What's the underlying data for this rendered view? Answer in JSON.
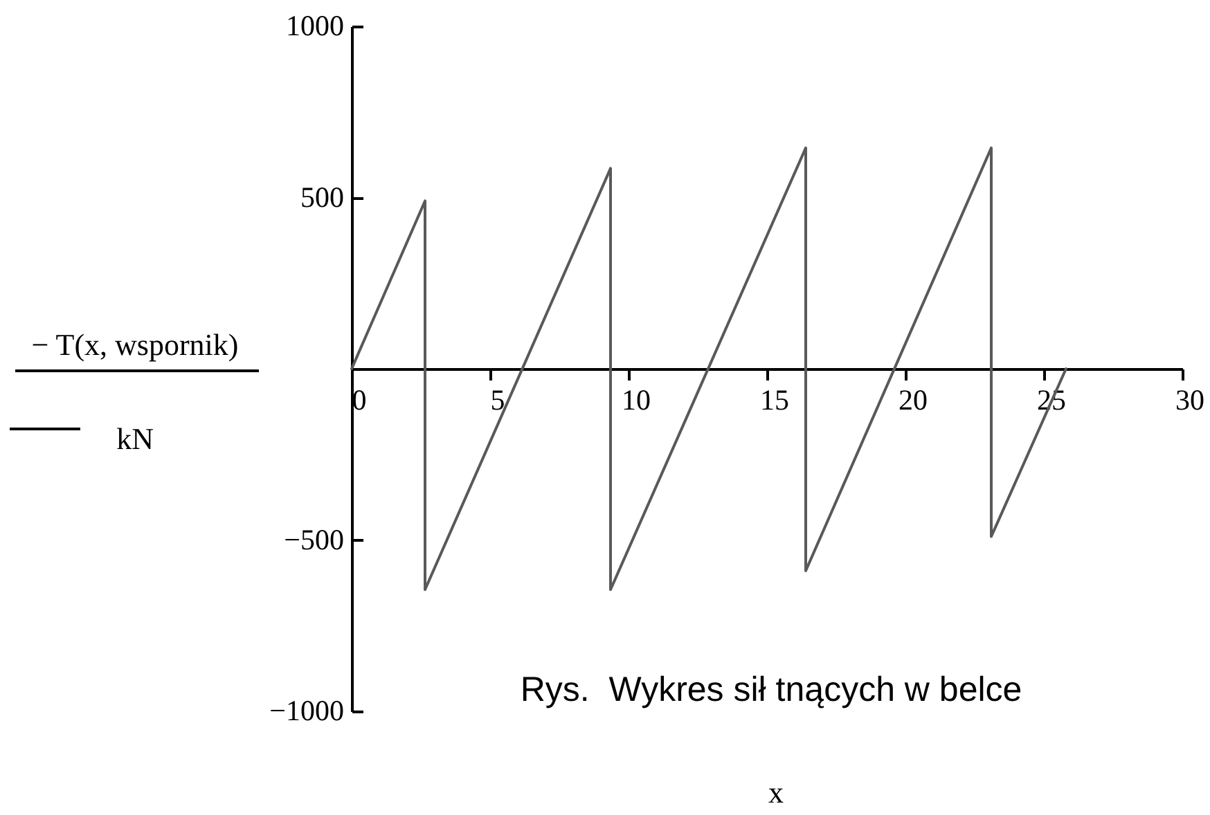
{
  "chart_data": {
    "type": "line",
    "ylabel": "− T(x, wspornik)\nkN",
    "xlabel": "x",
    "annotations": [
      "Rys.  Wykres sił tnących w belce"
    ],
    "x": [
      0,
      2.65,
      2.65,
      9.35,
      9.35,
      16.4,
      16.4,
      23.1,
      23.1,
      25.8
    ],
    "series": [
      {
        "color": "#595959",
        "values": [
          0,
          490,
          -645,
          585,
          -645,
          645,
          -590,
          645,
          -490,
          0
        ]
      }
    ],
    "xlim": [
      0,
      30
    ],
    "xticks": [
      0,
      5,
      10,
      15,
      20,
      25,
      30
    ],
    "ylim": [
      -1000,
      1000
    ],
    "yticks": [
      -1000,
      -500,
      500,
      1000
    ],
    "line_style": "solid"
  }
}
